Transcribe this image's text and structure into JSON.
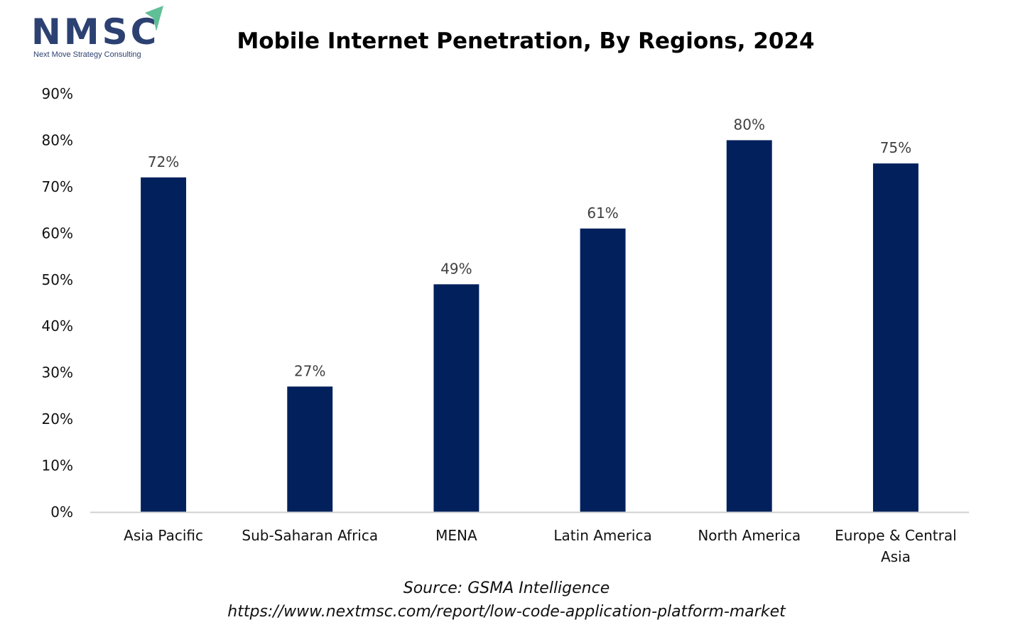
{
  "logo": {
    "text": "NMSC",
    "subtitle": "Next Move Strategy Consulting",
    "text_color": "#2c4172",
    "arrow_color": "#5fbf96"
  },
  "chart_data": {
    "type": "bar",
    "title": "Mobile Internet Penetration, By Regions, 2024",
    "xlabel": "",
    "ylabel": "",
    "categories": [
      "Asia Pacific",
      "Sub-Saharan Africa",
      "MENA",
      "Latin America",
      "North America",
      "Europe & Central Asia"
    ],
    "category_lines": [
      [
        "Asia Pacific"
      ],
      [
        "Sub-Saharan Africa"
      ],
      [
        "MENA"
      ],
      [
        "Latin America"
      ],
      [
        "North America"
      ],
      [
        "Europe & Central",
        "Asia"
      ]
    ],
    "values": [
      72,
      27,
      49,
      61,
      80,
      75
    ],
    "data_labels": [
      "72%",
      "27%",
      "49%",
      "61%",
      "80%",
      "75%"
    ],
    "value_unit": "%",
    "ylim": [
      0,
      90
    ],
    "yticks": [
      0,
      10,
      20,
      30,
      40,
      50,
      60,
      70,
      80,
      90
    ],
    "ytick_labels": [
      "0%",
      "10%",
      "20%",
      "30%",
      "40%",
      "50%",
      "60%",
      "70%",
      "80%",
      "90%"
    ],
    "grid": false,
    "legend": "none",
    "bar_color": "#02205c",
    "axis_color": "#d0d0d0"
  },
  "footer": {
    "source": "Source: GSMA Intelligence",
    "url": "https://www.nextmsc.com/report/low-code-application-platform-market"
  }
}
